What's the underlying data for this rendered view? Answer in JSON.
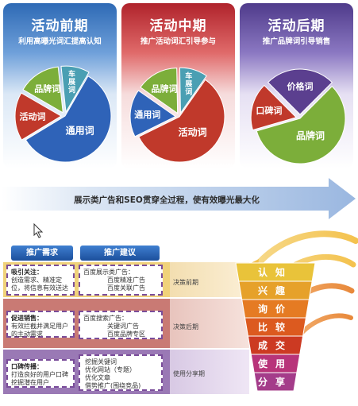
{
  "panels": [
    {
      "title": "活动前期",
      "subtitle": "利用高曝光词汇提高认知",
      "slices": [
        {
          "label": "通用词",
          "share": 0.58,
          "color": "#2f63b8"
        },
        {
          "label": "活动词",
          "share": 0.17,
          "color": "#c0392b"
        },
        {
          "label": "品牌词",
          "share": 0.15,
          "color": "#7cae3a"
        },
        {
          "label": "车展词",
          "share": 0.1,
          "color": "#4a9fb3"
        }
      ]
    },
    {
      "title": "活动中期",
      "subtitle": "推广活动词汇引导参与",
      "slices": [
        {
          "label": "活动词",
          "share": 0.58,
          "color": "#c0392b"
        },
        {
          "label": "通用词",
          "share": 0.17,
          "color": "#2f63b8"
        },
        {
          "label": "品牌词",
          "share": 0.15,
          "color": "#7cae3a"
        },
        {
          "label": "车展词",
          "share": 0.1,
          "color": "#4a9fb3"
        }
      ]
    },
    {
      "title": "活动后期",
      "subtitle": "推广品牌词引导销售",
      "slices": [
        {
          "label": "品牌词",
          "share": 0.58,
          "color": "#7cae3a"
        },
        {
          "label": "口碑词",
          "share": 0.17,
          "color": "#c0392b"
        },
        {
          "label": "价格词",
          "share": 0.25,
          "color": "#5b3f8f"
        }
      ]
    }
  ],
  "arrow_text": "展示类广告和SEO贯穿全过程，使有效曝光最大化",
  "tabs": {
    "demand": "推广需求",
    "advice": "推广建议"
  },
  "demand_boxes": [
    {
      "heading": "吸引关注：",
      "body": "创造需求、精准定位，将信息有效送达"
    },
    {
      "heading": "促进销售：",
      "body": "有效拦截并满足用户的主动需求"
    },
    {
      "heading": "口碑传播：",
      "body": "打造良好的用户口碑挖掘潜在用户"
    }
  ],
  "advice_boxes": [
    {
      "lines": [
        "百度展示类广告：",
        "百度精准广告",
        "百度关联广告"
      ]
    },
    {
      "lines": [
        "百度搜索广告：",
        "关键词广告",
        "百度品牌专区"
      ]
    },
    {
      "lines": [
        "挖掘关键词",
        "优化网站（专题）",
        "优化文章",
        "借势推广(围绕竞品)"
      ]
    }
  ],
  "stages": [
    "决策前期",
    "决策后期",
    "使用分享期"
  ],
  "funnel": [
    {
      "text": "认知",
      "color": "#e9c33a"
    },
    {
      "text": "兴趣",
      "color": "#e6a12a"
    },
    {
      "text": "询价",
      "color": "#e57b23"
    },
    {
      "text": "比较",
      "color": "#dc5a1f"
    },
    {
      "text": "成交",
      "color": "#cc3a22"
    },
    {
      "text": "使用",
      "color": "#b8347a"
    },
    {
      "text": "分享",
      "color": "#a43c8a"
    }
  ]
}
